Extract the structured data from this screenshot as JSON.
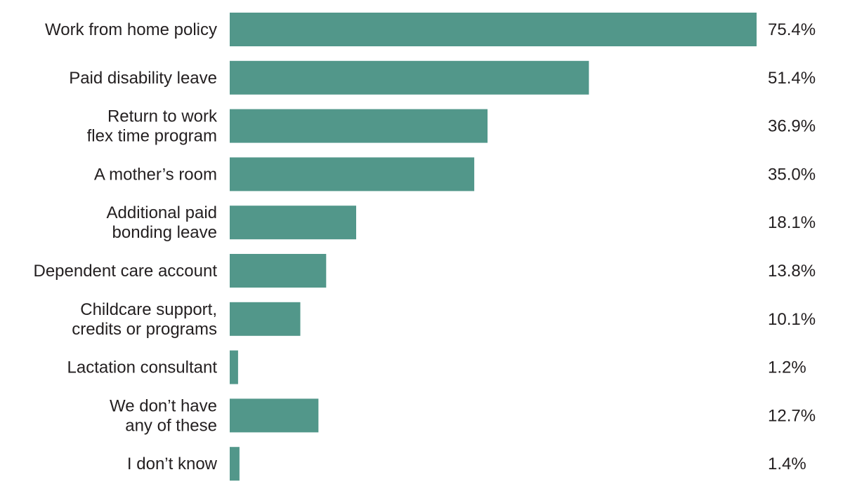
{
  "chart_data": {
    "type": "bar",
    "orientation": "horizontal",
    "categories": [
      "Work from home policy",
      "Paid disability leave",
      "Return to work flex time program",
      "A mother’s room",
      "Additional paid bonding leave",
      "Dependent care account",
      "Childcare support, credits or programs",
      "Lactation consultant",
      "We don’t have any of these",
      "I don’t know"
    ],
    "category_lines": [
      [
        "Work from home policy"
      ],
      [
        "Paid disability leave"
      ],
      [
        "Return to work",
        "flex time program"
      ],
      [
        "A mother’s room"
      ],
      [
        "Additional paid",
        "bonding leave"
      ],
      [
        "Dependent care account"
      ],
      [
        "Childcare support,",
        "credits or programs"
      ],
      [
        "Lactation consultant"
      ],
      [
        "We don’t have",
        "any of these"
      ],
      [
        "I don’t know"
      ]
    ],
    "values": [
      75.4,
      51.4,
      36.9,
      35.0,
      18.1,
      13.8,
      10.1,
      1.2,
      12.7,
      1.4
    ],
    "value_labels": [
      "75.4%",
      "51.4%",
      "36.9%",
      "35.0%",
      "18.1%",
      "13.8%",
      "10.1%",
      "1.2%",
      "12.7%",
      "1.4%"
    ],
    "title": "",
    "xlabel": "",
    "ylabel": "",
    "xlim": [
      0,
      75.4
    ],
    "grid": false,
    "legend": "none",
    "bar_color": "#52978a",
    "text_color": "#231f20"
  }
}
